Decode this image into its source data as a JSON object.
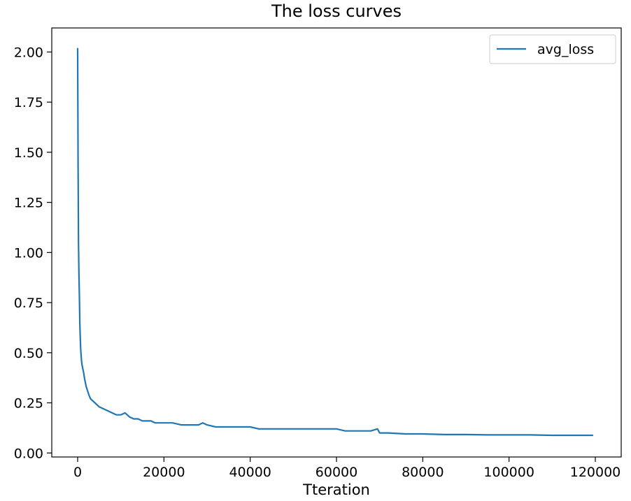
{
  "chart_data": {
    "type": "line",
    "title": "The loss curves",
    "xlabel": "Tteration",
    "ylabel": "",
    "xlim": [
      -6000,
      126000
    ],
    "ylim": [
      -0.02,
      2.12
    ],
    "xticks": [
      0,
      20000,
      40000,
      60000,
      80000,
      100000,
      120000
    ],
    "xtick_labels": [
      "0",
      "20000",
      "40000",
      "60000",
      "80000",
      "100000",
      "120000"
    ],
    "yticks": [
      0.0,
      0.25,
      0.5,
      0.75,
      1.0,
      1.25,
      1.5,
      1.75,
      2.0
    ],
    "ytick_labels": [
      "0.00",
      "0.25",
      "0.50",
      "0.75",
      "1.00",
      "1.25",
      "1.50",
      "1.75",
      "2.00"
    ],
    "grid": false,
    "legend": "top-right",
    "series": [
      {
        "name": "avg_loss",
        "color": "#1f77b4",
        "x": [
          0,
          100,
          200,
          300,
          400,
          500,
          600,
          700,
          800,
          900,
          1000,
          1200,
          1400,
          1600,
          1800,
          2000,
          2300,
          2600,
          3000,
          3500,
          4000,
          4500,
          5000,
          6000,
          7000,
          8000,
          9000,
          10000,
          11000,
          12000,
          13000,
          14000,
          15000,
          16000,
          17000,
          18000,
          19000,
          20000,
          22000,
          24000,
          26000,
          28000,
          29000,
          30000,
          32000,
          34000,
          36000,
          38000,
          40000,
          42000,
          44000,
          46000,
          48000,
          50000,
          52000,
          54000,
          56000,
          58000,
          60000,
          62000,
          64000,
          66000,
          68000,
          69500,
          70000,
          72000,
          76000,
          80000,
          85000,
          90000,
          95000,
          100000,
          105000,
          110000,
          115000,
          119500
        ],
        "y": [
          2.02,
          1.45,
          1.05,
          0.9,
          0.78,
          0.65,
          0.58,
          0.52,
          0.49,
          0.46,
          0.44,
          0.42,
          0.4,
          0.37,
          0.35,
          0.33,
          0.31,
          0.29,
          0.27,
          0.26,
          0.25,
          0.24,
          0.23,
          0.22,
          0.21,
          0.2,
          0.19,
          0.19,
          0.2,
          0.18,
          0.17,
          0.17,
          0.16,
          0.16,
          0.16,
          0.15,
          0.15,
          0.15,
          0.15,
          0.14,
          0.14,
          0.14,
          0.15,
          0.14,
          0.13,
          0.13,
          0.13,
          0.13,
          0.13,
          0.12,
          0.12,
          0.12,
          0.12,
          0.12,
          0.12,
          0.12,
          0.12,
          0.12,
          0.12,
          0.11,
          0.11,
          0.11,
          0.11,
          0.12,
          0.1,
          0.1,
          0.095,
          0.095,
          0.092,
          0.092,
          0.09,
          0.09,
          0.09,
          0.088,
          0.088,
          0.088
        ]
      }
    ]
  }
}
